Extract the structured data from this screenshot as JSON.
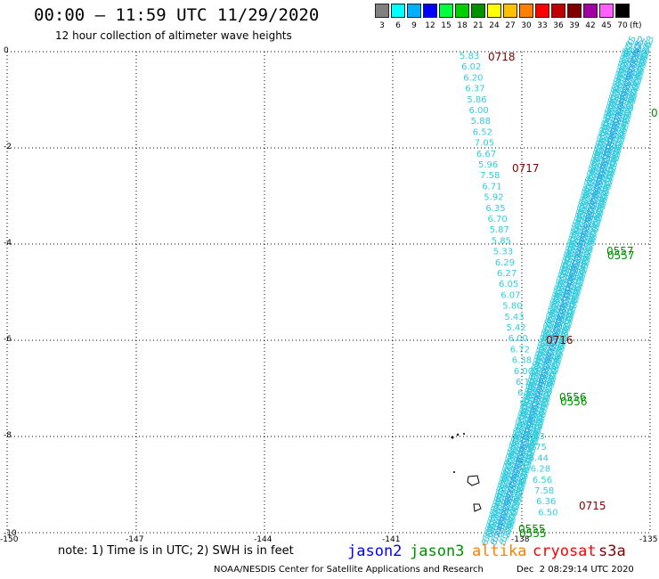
{
  "title": "00:00 – 11:59 UTC 11/29/2020",
  "subtitle": "12 hour collection of altimeter wave heights",
  "legend": {
    "unit": "(ft)",
    "bins": [
      {
        "label": "3",
        "color": "#808080"
      },
      {
        "label": "6",
        "color": "#00ffff"
      },
      {
        "label": "9",
        "color": "#00b0ff"
      },
      {
        "label": "12",
        "color": "#0000ff"
      },
      {
        "label": "15",
        "color": "#00ff40"
      },
      {
        "label": "18",
        "color": "#00d000"
      },
      {
        "label": "21",
        "color": "#009000"
      },
      {
        "label": "24",
        "color": "#ffff00"
      },
      {
        "label": "27",
        "color": "#ffc000"
      },
      {
        "label": "30",
        "color": "#ff8000"
      },
      {
        "label": "33",
        "color": "#ff0000"
      },
      {
        "label": "36",
        "color": "#c00000"
      },
      {
        "label": "39",
        "color": "#800000"
      },
      {
        "label": "42",
        "color": "#a000a0"
      },
      {
        "label": "45",
        "color": "#ff60ff"
      },
      {
        "label": "70",
        "color": "#000000"
      }
    ]
  },
  "axes": {
    "y_ticks": [
      "0",
      "-2",
      "-4",
      "-6",
      "-8",
      "-10"
    ],
    "x_ticks": [
      "-150",
      "-147",
      "-144",
      "-141",
      "-138",
      "-135"
    ]
  },
  "note": "note: 1) Time is in UTC; 2) SWH is in feet",
  "satellites": [
    {
      "name": "jason2",
      "color": "#0000ff"
    },
    {
      "name": "jason3",
      "color": "#009000"
    },
    {
      "name": "altika",
      "color": "#ff8000"
    },
    {
      "name": "cryosat",
      "color": "#ff0000"
    },
    {
      "name": "s3a",
      "color": "#800000"
    }
  ],
  "footer": "NOAA/NESDIS Center for Satellite Applications and Research",
  "footer_time": "Dec  2 08:29:14 UTC 2020",
  "track1": {
    "color": "#33ccdd",
    "values": [
      "5.83",
      "6.02",
      "6.20",
      "6.37",
      "5.86",
      "6.00",
      "5.88",
      "6.52",
      "7.05",
      "6.67",
      "5.96",
      "7.58",
      "6.71",
      "5.92",
      "6.35",
      "6.70",
      "5.87",
      "5.85",
      "5.33",
      "6.29",
      "6.27",
      "6.05",
      "6.07",
      "5.80",
      "5.43",
      "5.42",
      "6.00",
      "6.72",
      "6.38",
      "6.00",
      "6.11",
      "6.52",
      "5.92",
      "6.00",
      "6.60",
      "6.83",
      "6.75",
      "6.44",
      "6.28",
      "6.56",
      "7.58",
      "6.36",
      "6.50"
    ]
  },
  "time_labels": [
    {
      "text": "0718",
      "color": "#800000"
    },
    {
      "text": "0717",
      "color": "#800000"
    },
    {
      "text": "0716",
      "color": "#800000"
    },
    {
      "text": "0715",
      "color": "#800000"
    },
    {
      "text": "0557",
      "color": "#009000"
    },
    {
      "text": "0556",
      "color": "#009000"
    },
    {
      "text": "0555",
      "color": "#009000"
    },
    {
      "text": "0",
      "color": "#009000"
    }
  ]
}
